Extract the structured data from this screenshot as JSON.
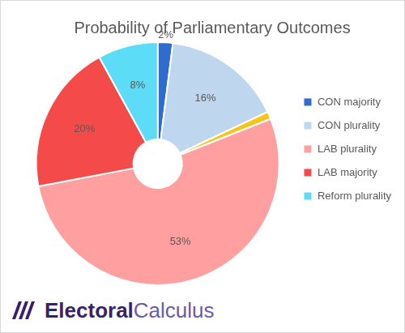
{
  "chart_data": {
    "type": "doughnut",
    "title": "Probability of Parliamentary Outcomes",
    "categories": [
      "CON majority",
      "CON plurality",
      null,
      "LAB plurality",
      "LAB majority",
      "Reform plurality"
    ],
    "values": [
      2,
      16,
      1,
      53,
      20,
      8
    ],
    "value_labels": [
      "2%",
      "16%",
      null,
      "53%",
      "20%",
      "8%"
    ],
    "colors": [
      "#2f6ccf",
      "#bfd6ef",
      "#f5c518",
      "#ff9f9f",
      "#f54a4a",
      "#5cdcf7"
    ],
    "data_labels": true,
    "legend": "right",
    "annotations": [
      "Electoral",
      "Calculus"
    ]
  }
}
